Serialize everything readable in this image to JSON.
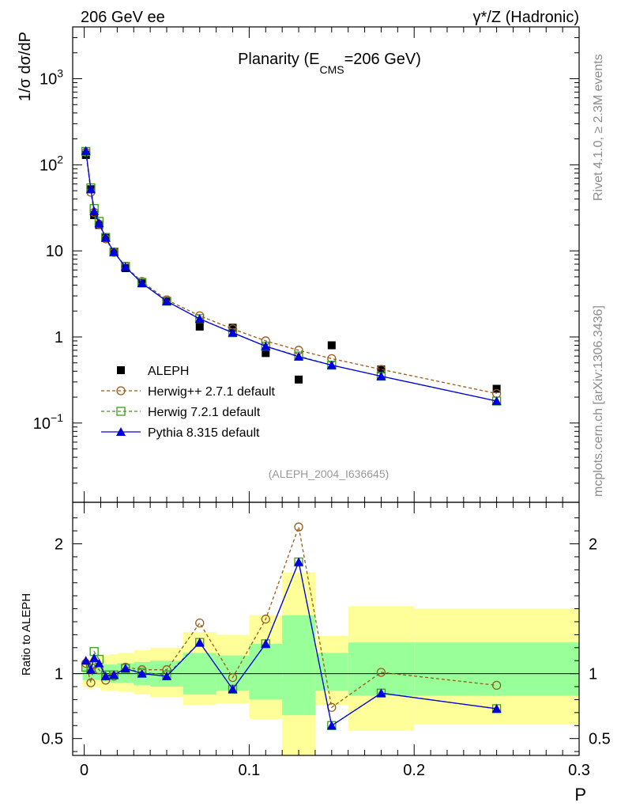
{
  "chart_data": [
    {
      "type": "scatter",
      "panel": "main",
      "title": "Planarity (E_CMS=206 GeV)",
      "title_main": "Planarity (E",
      "title_sub": "CMS",
      "title_tail": "=206 GeV)",
      "header_left": "206 GeV ee",
      "header_right": "γ*/Z (Hadronic)",
      "ylabel": "1/σ  dσ/dP",
      "ylog": true,
      "ylim": [
        0.012,
        4000
      ],
      "xlim": [
        -0.007,
        0.3
      ],
      "yticks": [
        {
          "value": 0.1,
          "label": "10",
          "exp": "−1"
        },
        {
          "value": 1,
          "label": "1",
          "exp": ""
        },
        {
          "value": 10,
          "label": "10",
          "exp": ""
        },
        {
          "value": 100,
          "label": "10",
          "exp": "2"
        },
        {
          "value": 1000,
          "label": "10",
          "exp": "3"
        }
      ],
      "watermark": "(ALEPH_2004_I636645)",
      "x": [
        0.001,
        0.004,
        0.006,
        0.009,
        0.013,
        0.018,
        0.025,
        0.035,
        0.05,
        0.07,
        0.09,
        0.11,
        0.13,
        0.15,
        0.18,
        0.25
      ],
      "series": [
        {
          "name": "ALEPH",
          "marker": "square",
          "color": "#000000",
          "values": [
            130,
            52,
            26,
            20,
            14.5,
            9.8,
            6.3,
            4.2,
            2.6,
            1.32,
            1.28,
            0.65,
            0.32,
            0.8,
            0.42,
            0.25
          ]
        },
        {
          "name": "Herwig++ 2.7.1 default",
          "marker": "circle",
          "color": "#9a5a1b",
          "dash": "4,3",
          "values": [
            140,
            48,
            28,
            20.5,
            13.8,
            9.6,
            6.6,
            4.4,
            2.7,
            1.76,
            1.24,
            0.9,
            0.7,
            0.56,
            0.42,
            0.22
          ]
        },
        {
          "name": "Herwig 7.2.1 default",
          "marker": "open-square",
          "color": "#3c9a1f",
          "dash": "4,3",
          "values": [
            143,
            54,
            31,
            22,
            14.3,
            9.7,
            6.6,
            4.3,
            2.6,
            1.63,
            1.12,
            0.78,
            0.6,
            0.47,
            0.35,
            0.18
          ]
        },
        {
          "name": "Pythia 8.315 default",
          "marker": "triangle",
          "color": "#0000dd",
          "values": [
            145,
            52,
            29,
            21,
            14.2,
            9.7,
            6.5,
            4.2,
            2.6,
            1.62,
            1.12,
            0.78,
            0.59,
            0.47,
            0.35,
            0.18
          ]
        }
      ]
    },
    {
      "type": "scatter",
      "panel": "ratio",
      "ylabel": "Ratio to ALEPH",
      "xlabel": "P",
      "ylim": [
        0.37,
        2.32
      ],
      "xlim": [
        -0.007,
        0.3
      ],
      "xticks": [
        {
          "value": 0,
          "label": "0"
        },
        {
          "value": 0.1,
          "label": "0.1"
        },
        {
          "value": 0.2,
          "label": "0.2"
        },
        {
          "value": 0.3,
          "label": "0.3"
        }
      ],
      "yticks": [
        {
          "value": 0.5,
          "label": "0.5"
        },
        {
          "value": 1,
          "label": "1"
        },
        {
          "value": 2,
          "label": "2"
        }
      ],
      "bands": [
        {
          "x0": -0.001,
          "x1": 0.002,
          "y1lo": 0.95,
          "y1hi": 1.05,
          "y2lo": 0.9,
          "y2hi": 1.1
        },
        {
          "x0": 0.002,
          "x1": 0.005,
          "y1lo": 0.94,
          "y1hi": 1.06,
          "y2lo": 0.88,
          "y2hi": 1.12
        },
        {
          "x0": 0.005,
          "x1": 0.0075,
          "y1lo": 0.95,
          "y1hi": 1.06,
          "y2lo": 0.9,
          "y2hi": 1.12
        },
        {
          "x0": 0.0075,
          "x1": 0.01,
          "y1lo": 0.95,
          "y1hi": 1.07,
          "y2lo": 0.89,
          "y2hi": 1.13
        },
        {
          "x0": 0.01,
          "x1": 0.015,
          "y1lo": 0.94,
          "y1hi": 1.07,
          "y2lo": 0.87,
          "y2hi": 1.14
        },
        {
          "x0": 0.015,
          "x1": 0.02,
          "y1lo": 0.93,
          "y1hi": 1.07,
          "y2lo": 0.87,
          "y2hi": 1.15
        },
        {
          "x0": 0.02,
          "x1": 0.03,
          "y1lo": 0.93,
          "y1hi": 1.08,
          "y2lo": 0.86,
          "y2hi": 1.16
        },
        {
          "x0": 0.03,
          "x1": 0.04,
          "y1lo": 0.91,
          "y1hi": 1.09,
          "y2lo": 0.84,
          "y2hi": 1.18
        },
        {
          "x0": 0.04,
          "x1": 0.06,
          "y1lo": 0.9,
          "y1hi": 1.1,
          "y2lo": 0.82,
          "y2hi": 1.2
        },
        {
          "x0": 0.06,
          "x1": 0.08,
          "y1lo": 0.84,
          "y1hi": 1.16,
          "y2lo": 0.76,
          "y2hi": 1.32
        },
        {
          "x0": 0.08,
          "x1": 0.1,
          "y1lo": 0.87,
          "y1hi": 1.14,
          "y2lo": 0.77,
          "y2hi": 1.3
        },
        {
          "x0": 0.1,
          "x1": 0.12,
          "y1lo": 0.8,
          "y1hi": 1.23,
          "y2lo": 0.65,
          "y2hi": 1.45
        },
        {
          "x0": 0.12,
          "x1": 0.14,
          "y1lo": 0.68,
          "y1hi": 1.45,
          "y2lo": 0.37,
          "y2hi": 1.78
        },
        {
          "x0": 0.14,
          "x1": 0.16,
          "y1lo": 0.87,
          "y1hi": 1.16,
          "y2lo": 0.76,
          "y2hi": 1.29
        },
        {
          "x0": 0.16,
          "x1": 0.2,
          "y1lo": 0.83,
          "y1hi": 1.24,
          "y2lo": 0.56,
          "y2hi": 1.52
        },
        {
          "x0": 0.2,
          "x1": 0.3,
          "y1lo": 0.83,
          "y1hi": 1.24,
          "y2lo": 0.61,
          "y2hi": 1.5
        }
      ],
      "x": [
        0.001,
        0.004,
        0.006,
        0.009,
        0.013,
        0.018,
        0.025,
        0.035,
        0.05,
        0.07,
        0.09,
        0.11,
        0.13,
        0.15,
        0.18,
        0.25
      ],
      "series": [
        {
          "name": "Herwig++ 2.7.1 default",
          "marker": "circle",
          "color": "#9a5a1b",
          "dash": "4,3",
          "values": [
            1.08,
            0.93,
            1.07,
            1.03,
            0.95,
            0.98,
            1.05,
            1.03,
            1.03,
            1.39,
            0.97,
            1.42,
            2.13,
            0.74,
            1.01,
            0.91
          ]
        },
        {
          "name": "Herwig 7.2.1 default",
          "marker": "open-square",
          "color": "#3c9a1f",
          "dash": "4,3",
          "values": [
            1.05,
            1.04,
            1.17,
            1.11,
            0.99,
            0.99,
            1.04,
            1.01,
            0.99,
            1.24,
            0.88,
            1.23,
            1.86,
            0.6,
            0.85,
            0.73
          ]
        },
        {
          "name": "Pythia 8.315 default",
          "marker": "triangle",
          "color": "#0000dd",
          "values": [
            1.1,
            1.03,
            1.12,
            1.08,
            0.98,
            0.99,
            1.04,
            1.0,
            0.98,
            1.24,
            0.88,
            1.23,
            1.86,
            0.6,
            0.85,
            0.73
          ]
        }
      ]
    }
  ],
  "side_text": {
    "rivet": "Rivet 4.1.0, ≥ 2.3M events",
    "mcplots": "mcplots.cern.ch [arXiv:1306.3436]"
  },
  "colors": {
    "band_inner": "#99ff99",
    "band_outer": "#ffff99",
    "frame": "#000000"
  }
}
